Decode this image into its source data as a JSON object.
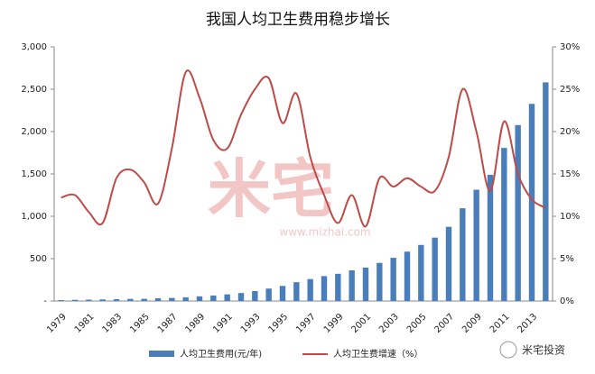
{
  "chart_data": {
    "type": "bar-line",
    "title": "我国人均卫生费用稳步增长",
    "categories": [
      "1979",
      null,
      "1981",
      null,
      "1983",
      null,
      "1985",
      null,
      "1987",
      null,
      "1989",
      null,
      "1991",
      null,
      "1993",
      null,
      "1995",
      null,
      "1997",
      null,
      "1999",
      null,
      "2001",
      null,
      "2003",
      null,
      "2005",
      null,
      "2007",
      null,
      "2009",
      null,
      "2011",
      null,
      "2013",
      null
    ],
    "series": [
      {
        "name": "人均卫生费用(元/年)",
        "color": "#4a7ebb",
        "type": "bar",
        "values": [
          11,
          14,
          16,
          19,
          21,
          25,
          26,
          32,
          36,
          44,
          55,
          65,
          78,
          94,
          117,
          147,
          178,
          222,
          259,
          294,
          321,
          362,
          394,
          450,
          510,
          583,
          662,
          748,
          876,
          1095,
          1314,
          1490,
          1807,
          2077,
          2327,
          2581
        ]
      },
      {
        "name": "人均卫生费增速（%）",
        "color": "#be4b48",
        "type": "line",
        "axis": "y2",
        "values": [
          12.2,
          12.5,
          10.5,
          9.2,
          14.5,
          15.5,
          14,
          11.5,
          18,
          27,
          24,
          19,
          18,
          22,
          25,
          26.3,
          21,
          24.5,
          17,
          12.5,
          9.2,
          12.5,
          8.8,
          14.5,
          13.5,
          14.5,
          13.5,
          13,
          17,
          25,
          20,
          13,
          21.2,
          15,
          12,
          11
        ]
      }
    ],
    "ylim": [
      0,
      3000
    ],
    "yticks": [
      {
        "value": 0,
        "label": "-"
      },
      500,
      {
        "value": 1000,
        "label": "1,000"
      },
      {
        "value": 1500,
        "label": "1,500"
      },
      {
        "value": 2000,
        "label": "2,000"
      },
      {
        "value": 2500,
        "label": "2,500"
      },
      {
        "value": 3000,
        "label": "3,000"
      }
    ],
    "y2lim": [
      0,
      30
    ],
    "y2ticks": [
      {
        "value": 0,
        "label": "0%"
      },
      {
        "value": 5,
        "label": "5%"
      },
      {
        "value": 10,
        "label": "10%"
      },
      {
        "value": 15,
        "label": "15%"
      },
      {
        "value": 20,
        "label": "20%"
      },
      {
        "value": 25,
        "label": "25%"
      },
      {
        "value": 30,
        "label": "30%"
      }
    ],
    "watermark": [
      "米宅",
      "www.mizhai.com"
    ],
    "brand": "米宅投资"
  }
}
